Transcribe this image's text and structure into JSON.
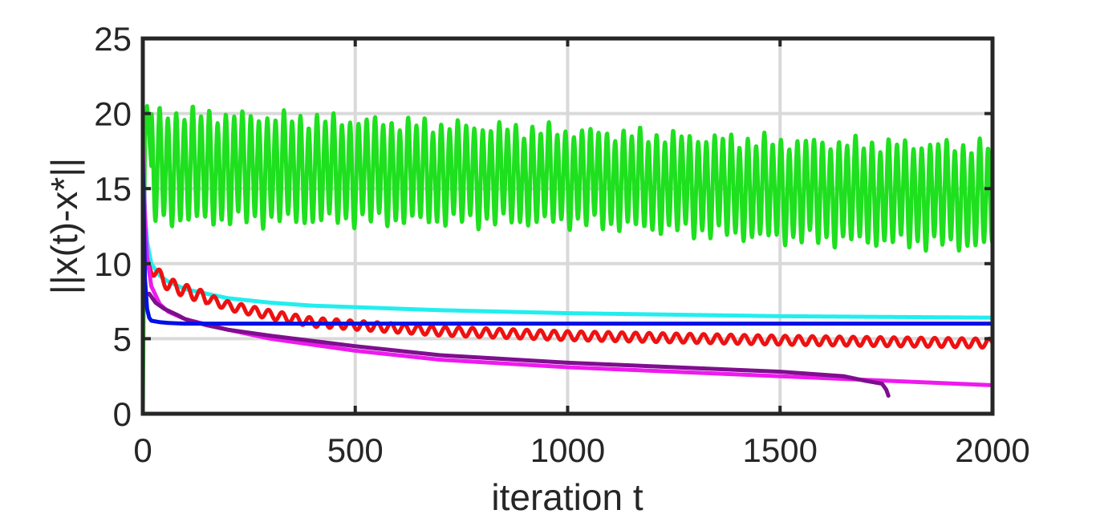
{
  "chart_data": {
    "type": "line",
    "title": "",
    "xlabel": "iteration t",
    "ylabel": "||x(t)-x*||",
    "xlim": [
      0,
      2000
    ],
    "ylim": [
      0,
      25
    ],
    "xticks": [
      0,
      500,
      1000,
      1500,
      2000
    ],
    "yticks": [
      0,
      5,
      10,
      15,
      20,
      25
    ],
    "xtick_labels": [
      "0",
      "500",
      "1000",
      "1500",
      "2000"
    ],
    "ytick_labels": [
      "0",
      "5",
      "10",
      "15",
      "20",
      "25"
    ],
    "grid": true,
    "series": [
      {
        "name": "green",
        "color": "#1ee01e",
        "style": "oscillating",
        "x": [
          0,
          5,
          10,
          20,
          2000
        ],
        "y": [
          0,
          18.5,
          20.5,
          16.5,
          14.5
        ],
        "osc_center": [
          [
            0,
            16.5
          ],
          [
            500,
            16.2
          ],
          [
            1000,
            15.8
          ],
          [
            1500,
            14.9
          ],
          [
            2000,
            14.5
          ]
        ],
        "osc_amplitude": [
          [
            0,
            3.6
          ],
          [
            500,
            3.3
          ],
          [
            1000,
            3.0
          ],
          [
            1500,
            3.2
          ],
          [
            2000,
            3.3
          ]
        ],
        "osc_period": 19.5
      },
      {
        "name": "cyan",
        "color": "#22eeee",
        "x": [
          0,
          5,
          10,
          20,
          40,
          60,
          100,
          150,
          200,
          300,
          400,
          500,
          700,
          1000,
          1500,
          2000
        ],
        "y": [
          17.5,
          13.5,
          11.5,
          10.0,
          9.2,
          8.8,
          8.3,
          8.0,
          7.7,
          7.4,
          7.2,
          7.1,
          6.9,
          6.7,
          6.5,
          6.4
        ]
      },
      {
        "name": "blue",
        "color": "#0010e6",
        "x": [
          0,
          5,
          10,
          15,
          20,
          30,
          40,
          60,
          100,
          2000
        ],
        "y": [
          17.0,
          9.0,
          7.0,
          6.4,
          6.2,
          6.15,
          6.1,
          6.05,
          6.0,
          6.0
        ]
      },
      {
        "name": "red",
        "color": "#ee1111",
        "style": "wavy",
        "x": [
          15,
          30,
          50,
          80,
          120,
          200,
          300,
          400,
          500,
          700,
          1000,
          1500,
          2000
        ],
        "y": [
          9.8,
          9.5,
          8.8,
          8.4,
          8.0,
          7.2,
          6.6,
          6.1,
          5.9,
          5.5,
          5.2,
          4.9,
          4.7
        ],
        "wave_amplitude": 0.3,
        "wave_period": 32
      },
      {
        "name": "magenta",
        "color": "#ee1aee",
        "x": [
          0,
          5,
          10,
          20,
          40,
          60,
          100,
          200,
          300,
          500,
          700,
          1000,
          1500,
          2000
        ],
        "y": [
          18.0,
          13.0,
          10.5,
          8.5,
          7.3,
          6.8,
          6.3,
          5.6,
          5.0,
          4.2,
          3.6,
          3.1,
          2.5,
          1.9
        ]
      },
      {
        "name": "purple",
        "color": "#7e0f8e",
        "x": [
          15,
          30,
          50,
          80,
          100,
          150,
          200,
          300,
          500,
          700,
          1000,
          1500,
          1650,
          1700,
          1740,
          1750,
          1755
        ],
        "y": [
          8.0,
          7.4,
          7.0,
          6.6,
          6.3,
          5.9,
          5.6,
          5.2,
          4.5,
          3.9,
          3.4,
          2.8,
          2.5,
          2.2,
          2.0,
          1.6,
          1.2
        ]
      }
    ]
  }
}
